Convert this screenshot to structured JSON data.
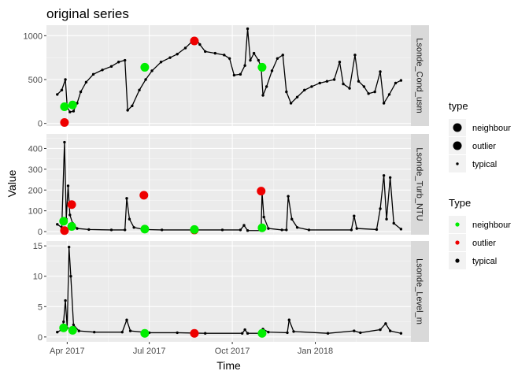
{
  "chart_data": {
    "type": "scatter",
    "title": "original series",
    "xlabel": "Time",
    "ylabel": "Value",
    "x_ticks": [
      "Apr 2017",
      "Jul 2017",
      "Oct 2017",
      "Jan 2018"
    ],
    "x_tick_dates": [
      "2017-04-01",
      "2017-07-01",
      "2017-10-01",
      "2018-01-01"
    ],
    "xlim": [
      "2017-03-09",
      "2018-04-17"
    ],
    "legend_position": "right",
    "legends": [
      {
        "title": "type",
        "entries": [
          {
            "label": "neighbour",
            "color": "#000000",
            "size": "large"
          },
          {
            "label": "outlier",
            "color": "#000000",
            "size": "large"
          },
          {
            "label": "typical",
            "color": "#000000",
            "size": "small"
          }
        ]
      },
      {
        "title": "Type",
        "entries": [
          {
            "label": "neighbour",
            "color": "#00ee00"
          },
          {
            "label": "outlier",
            "color": "#ee0000"
          },
          {
            "label": "typical",
            "color": "#000000"
          }
        ]
      }
    ],
    "panels": [
      {
        "strip": "Lsonde_Cond_usm",
        "ylim": [
          -30,
          1120
        ],
        "y_ticks": [
          0,
          500,
          1000
        ],
        "typical_series": [
          [
            "2017-03-21",
            330
          ],
          [
            "2017-03-26",
            380
          ],
          [
            "2017-03-30",
            500
          ],
          [
            "2017-04-01",
            190
          ],
          [
            "2017-04-04",
            130
          ],
          [
            "2017-04-08",
            140
          ],
          [
            "2017-04-12",
            230
          ],
          [
            "2017-04-16",
            360
          ],
          [
            "2017-04-22",
            470
          ],
          [
            "2017-04-30",
            560
          ],
          [
            "2017-05-10",
            610
          ],
          [
            "2017-05-20",
            650
          ],
          [
            "2017-05-28",
            700
          ],
          [
            "2017-06-04",
            720
          ],
          [
            "2017-06-07",
            150
          ],
          [
            "2017-06-12",
            200
          ],
          [
            "2017-06-20",
            380
          ],
          [
            "2017-06-27",
            500
          ],
          [
            "2017-07-04",
            600
          ],
          [
            "2017-07-14",
            700
          ],
          [
            "2017-07-24",
            750
          ],
          [
            "2017-08-01",
            790
          ],
          [
            "2017-08-10",
            860
          ],
          [
            "2017-08-17",
            930
          ],
          [
            "2017-08-22",
            960
          ],
          [
            "2017-08-26",
            900
          ],
          [
            "2017-09-01",
            820
          ],
          [
            "2017-09-12",
            800
          ],
          [
            "2017-09-22",
            780
          ],
          [
            "2017-09-28",
            740
          ],
          [
            "2017-10-03",
            550
          ],
          [
            "2017-10-10",
            560
          ],
          [
            "2017-10-15",
            660
          ],
          [
            "2017-10-18",
            1080
          ],
          [
            "2017-10-21",
            720
          ],
          [
            "2017-10-25",
            800
          ],
          [
            "2017-10-30",
            720
          ],
          [
            "2017-11-02",
            640
          ],
          [
            "2017-11-04",
            320
          ],
          [
            "2017-11-08",
            420
          ],
          [
            "2017-11-14",
            600
          ],
          [
            "2017-11-20",
            740
          ],
          [
            "2017-11-26",
            780
          ],
          [
            "2017-11-30",
            360
          ],
          [
            "2017-12-05",
            230
          ],
          [
            "2017-12-12",
            300
          ],
          [
            "2017-12-20",
            380
          ],
          [
            "2017-12-28",
            420
          ],
          [
            "2018-01-06",
            460
          ],
          [
            "2018-01-14",
            480
          ],
          [
            "2018-01-22",
            500
          ],
          [
            "2018-01-28",
            700
          ],
          [
            "2018-02-01",
            450
          ],
          [
            "2018-02-08",
            400
          ],
          [
            "2018-02-14",
            780
          ],
          [
            "2018-02-18",
            480
          ],
          [
            "2018-02-24",
            420
          ],
          [
            "2018-03-01",
            340
          ],
          [
            "2018-03-08",
            360
          ],
          [
            "2018-03-14",
            590
          ],
          [
            "2018-03-18",
            230
          ],
          [
            "2018-03-24",
            330
          ],
          [
            "2018-03-31",
            460
          ],
          [
            "2018-04-06",
            490
          ]
        ],
        "neighbour": [
          [
            "2017-03-29",
            190
          ],
          [
            "2017-04-07",
            210
          ],
          [
            "2017-06-26",
            640
          ],
          [
            "2017-11-03",
            640
          ]
        ],
        "outlier": [
          [
            "2017-03-29",
            10
          ],
          [
            "2017-08-20",
            940
          ]
        ]
      },
      {
        "strip": "Lsonde_Turb_NTU",
        "ylim": [
          -15,
          470
        ],
        "y_ticks": [
          0,
          100,
          200,
          300,
          400
        ],
        "typical_series": [
          [
            "2017-03-21",
            35
          ],
          [
            "2017-03-26",
            20
          ],
          [
            "2017-03-29",
            430
          ],
          [
            "2017-03-31",
            60
          ],
          [
            "2017-04-02",
            220
          ],
          [
            "2017-04-04",
            80
          ],
          [
            "2017-04-07",
            40
          ],
          [
            "2017-04-12",
            15
          ],
          [
            "2017-04-25",
            10
          ],
          [
            "2017-05-20",
            8
          ],
          [
            "2017-06-04",
            8
          ],
          [
            "2017-06-06",
            160
          ],
          [
            "2017-06-09",
            60
          ],
          [
            "2017-06-14",
            20
          ],
          [
            "2017-06-25",
            10
          ],
          [
            "2017-07-15",
            8
          ],
          [
            "2017-08-20",
            8
          ],
          [
            "2017-09-20",
            8
          ],
          [
            "2017-10-10",
            8
          ],
          [
            "2017-10-14",
            30
          ],
          [
            "2017-10-18",
            5
          ],
          [
            "2017-11-02",
            5
          ],
          [
            "2017-11-03",
            190
          ],
          [
            "2017-11-05",
            70
          ],
          [
            "2017-11-10",
            15
          ],
          [
            "2017-11-25",
            8
          ],
          [
            "2017-11-30",
            8
          ],
          [
            "2017-12-02",
            170
          ],
          [
            "2017-12-06",
            60
          ],
          [
            "2017-12-12",
            20
          ],
          [
            "2017-12-25",
            8
          ],
          [
            "2018-02-10",
            8
          ],
          [
            "2018-02-13",
            75
          ],
          [
            "2018-02-16",
            15
          ],
          [
            "2018-03-10",
            10
          ],
          [
            "2018-03-14",
            110
          ],
          [
            "2018-03-18",
            270
          ],
          [
            "2018-03-21",
            60
          ],
          [
            "2018-03-25",
            260
          ],
          [
            "2018-03-29",
            40
          ],
          [
            "2018-04-06",
            12
          ]
        ],
        "neighbour": [
          [
            "2017-03-28",
            50
          ],
          [
            "2017-04-06",
            25
          ],
          [
            "2017-06-26",
            12
          ],
          [
            "2017-08-20",
            10
          ],
          [
            "2017-11-03",
            18
          ]
        ],
        "outlier": [
          [
            "2017-03-29",
            5
          ],
          [
            "2017-04-06",
            130
          ],
          [
            "2017-06-25",
            175
          ],
          [
            "2017-08-20",
            8
          ],
          [
            "2017-11-02",
            195
          ]
        ]
      },
      {
        "strip": "Lsonde_Level_m",
        "ylim": [
          -0.8,
          15.8
        ],
        "y_ticks": [
          0,
          5,
          10,
          15
        ],
        "typical_series": [
          [
            "2017-03-21",
            0.8
          ],
          [
            "2017-03-26",
            1.2
          ],
          [
            "2017-03-28",
            2.5
          ],
          [
            "2017-03-30",
            6.0
          ],
          [
            "2017-04-01",
            1.5
          ],
          [
            "2017-04-03",
            14.8
          ],
          [
            "2017-04-05",
            10.0
          ],
          [
            "2017-04-08",
            2.0
          ],
          [
            "2017-04-14",
            1.0
          ],
          [
            "2017-05-01",
            0.8
          ],
          [
            "2017-06-01",
            0.8
          ],
          [
            "2017-06-06",
            2.8
          ],
          [
            "2017-06-10",
            1.0
          ],
          [
            "2017-07-01",
            0.7
          ],
          [
            "2017-08-01",
            0.7
          ],
          [
            "2017-09-01",
            0.6
          ],
          [
            "2017-10-12",
            0.6
          ],
          [
            "2017-10-15",
            1.2
          ],
          [
            "2017-10-18",
            0.6
          ],
          [
            "2017-11-02",
            0.6
          ],
          [
            "2017-11-04",
            1.3
          ],
          [
            "2017-11-10",
            0.8
          ],
          [
            "2017-12-01",
            0.7
          ],
          [
            "2017-12-03",
            2.8
          ],
          [
            "2017-12-08",
            0.9
          ],
          [
            "2018-01-15",
            0.6
          ],
          [
            "2018-02-13",
            1.0
          ],
          [
            "2018-02-20",
            0.7
          ],
          [
            "2018-03-14",
            1.2
          ],
          [
            "2018-03-20",
            2.2
          ],
          [
            "2018-03-25",
            1.0
          ],
          [
            "2018-04-06",
            0.6
          ]
        ],
        "neighbour": [
          [
            "2017-03-28",
            1.5
          ],
          [
            "2017-04-07",
            1.1
          ],
          [
            "2017-06-26",
            0.6
          ],
          [
            "2017-11-03",
            0.6
          ]
        ],
        "outlier": [
          [
            "2017-08-20",
            0.6
          ]
        ]
      }
    ]
  }
}
